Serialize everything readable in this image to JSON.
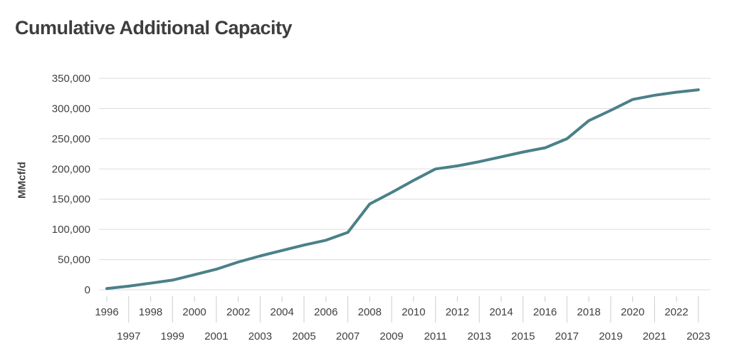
{
  "page": {
    "background": "#ffffff"
  },
  "chart_data": {
    "type": "line",
    "title": "Cumulative Additional Capacity",
    "ylabel": "MMcf/d",
    "xlabel": "",
    "x": [
      1996,
      1997,
      1998,
      1999,
      2000,
      2001,
      2002,
      2003,
      2004,
      2005,
      2006,
      2007,
      2008,
      2009,
      2010,
      2011,
      2012,
      2013,
      2014,
      2015,
      2016,
      2017,
      2018,
      2019,
      2020,
      2021,
      2022,
      2023
    ],
    "series": [
      {
        "name": "Cumulative Additional Capacity",
        "values": [
          2000,
          6000,
          11000,
          16000,
          25000,
          34000,
          46000,
          56000,
          65000,
          74000,
          82000,
          95000,
          142000,
          161000,
          181000,
          200000,
          205000,
          212000,
          220000,
          228000,
          235000,
          250000,
          280000,
          297000,
          315000,
          322000,
          327000,
          331000
        ]
      }
    ],
    "ylim": [
      0,
      350000
    ],
    "yticks": [
      0,
      50000,
      100000,
      150000,
      200000,
      250000,
      300000,
      350000
    ],
    "ytick_labels": [
      "0",
      "50,000",
      "100,000",
      "150,000",
      "200,000",
      "250,000",
      "300,000",
      "350,000"
    ],
    "grid": "horizontal-only",
    "legend": "none",
    "line_color": "#4B8089",
    "line_width": 4,
    "colors": {
      "title": "#3E3E3E",
      "axis_title": "#3E3E3E",
      "tick_label": "#404040",
      "gridline": "#DBDBDB",
      "tick_mark": "#CDCDCD",
      "background": "#FFFFFF"
    }
  }
}
